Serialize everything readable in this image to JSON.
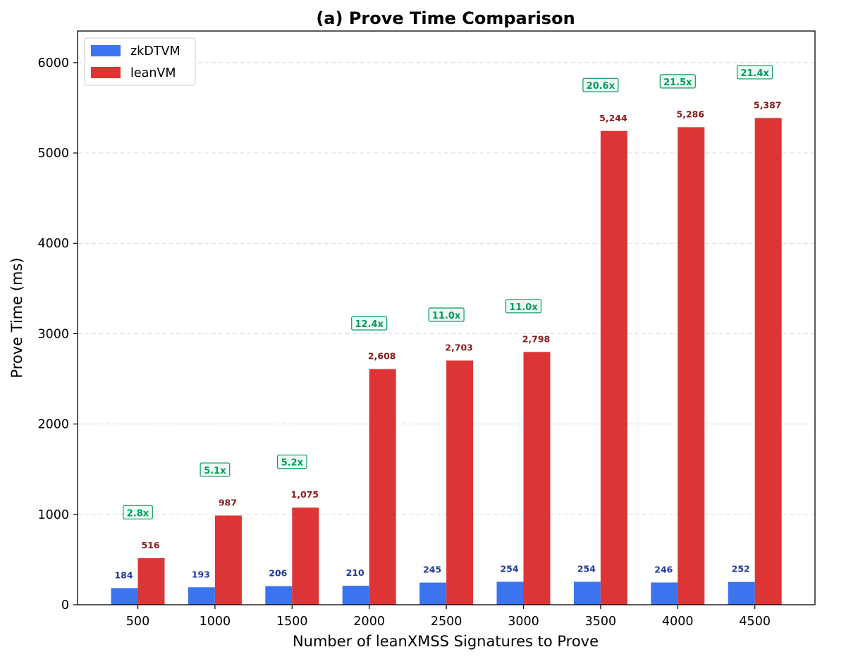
{
  "chart_data": {
    "type": "bar",
    "title": "(a) Prove Time Comparison",
    "xlabel": "Number of leanXMSS Signatures to Prove",
    "ylabel": "Prove Time (ms)",
    "categories": [
      "500",
      "1000",
      "1500",
      "2000",
      "2500",
      "3000",
      "3500",
      "4000",
      "4500"
    ],
    "series": [
      {
        "name": "zkDTVM",
        "color": "#3b74ee",
        "label_color": "#1e3a9e",
        "values": [
          184,
          193,
          206,
          210,
          245,
          254,
          254,
          246,
          252
        ],
        "labels": [
          "184",
          "193",
          "206",
          "210",
          "245",
          "254",
          "254",
          "246",
          "252"
        ]
      },
      {
        "name": "leanVM",
        "color": "#dd3535",
        "label_color": "#8b1a1a",
        "values": [
          516,
          987,
          1075,
          2608,
          2703,
          2798,
          5244,
          5286,
          5387
        ],
        "labels": [
          "516",
          "987",
          "1,075",
          "2,608",
          "2,703",
          "2,798",
          "5,244",
          "5,286",
          "5,387"
        ]
      }
    ],
    "ratios": [
      "2.8x",
      "5.1x",
      "5.2x",
      "12.4x",
      "11.0x",
      "11.0x",
      "20.6x",
      "21.5x",
      "21.4x"
    ],
    "ratio_color": "#0a9a5c",
    "ylim": [
      0,
      6350
    ],
    "yticks": [
      0,
      1000,
      2000,
      3000,
      4000,
      5000,
      6000
    ],
    "grid": "horizontal dashed",
    "legend_position": "top-left"
  }
}
